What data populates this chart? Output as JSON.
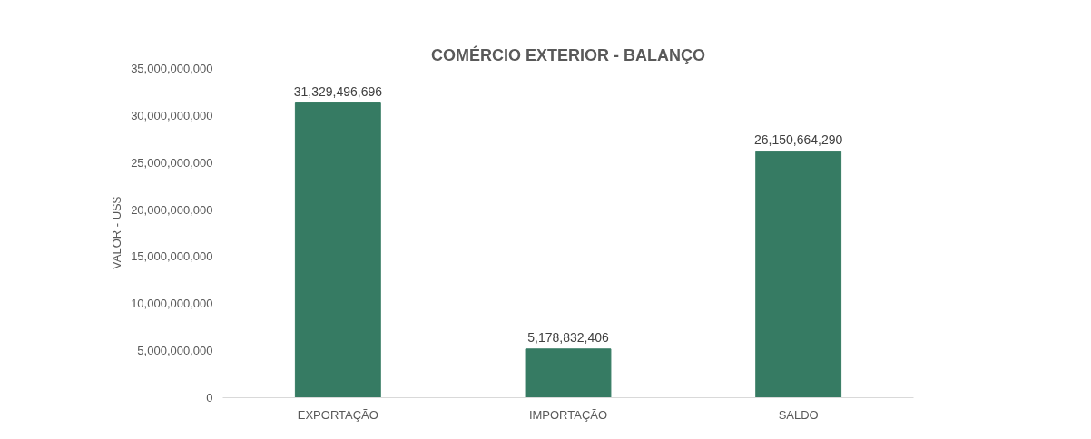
{
  "chart_data": {
    "type": "bar",
    "title": "COMÉRCIO EXTERIOR - BALANÇO",
    "ylabel": "VALOR - US$",
    "categories": [
      "EXPORTAÇÃO",
      "IMPORTAÇÃO",
      "SALDO"
    ],
    "values": [
      31329496696,
      5178832406,
      26150664290
    ],
    "value_labels": [
      "31,329,496,696",
      "5,178,832,406",
      "26,150,664,290"
    ],
    "color": "#367b63",
    "ylim": [
      0,
      35000000000
    ],
    "yticks": [
      {
        "value": 0,
        "label": "0"
      },
      {
        "value": 5000000000,
        "label": "5,000,000,000"
      },
      {
        "value": 10000000000,
        "label": "10,000,000,000"
      },
      {
        "value": 15000000000,
        "label": "15,000,000,000"
      },
      {
        "value": 20000000000,
        "label": "20,000,000,000"
      },
      {
        "value": 25000000000,
        "label": "25,000,000,000"
      },
      {
        "value": 30000000000,
        "label": "30,000,000,000"
      },
      {
        "value": 35000000000,
        "label": "35,000,000,000"
      }
    ],
    "grid": false
  }
}
